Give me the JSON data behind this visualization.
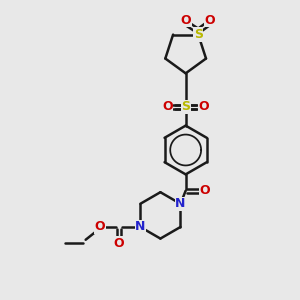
{
  "bg_color": "#e8e8e8",
  "bond_color": "#1a1a1a",
  "sulfur_color": "#b8b800",
  "oxygen_color": "#cc0000",
  "nitrogen_color": "#2222cc",
  "lw": 1.8,
  "figsize": [
    3.0,
    3.0
  ],
  "dpi": 100,
  "xlim": [
    0,
    10
  ],
  "ylim": [
    0,
    10
  ]
}
